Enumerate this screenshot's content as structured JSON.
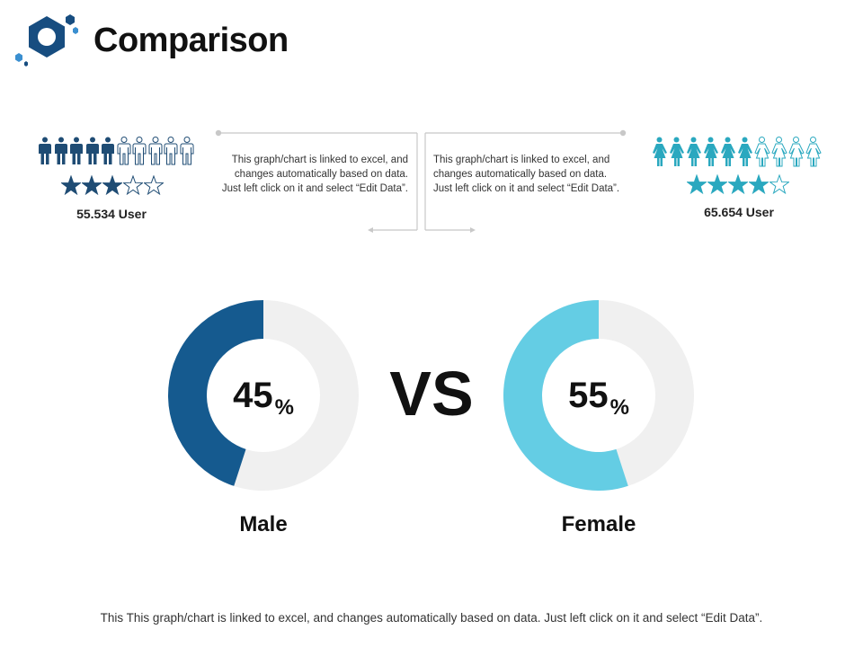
{
  "title": "Comparison",
  "colors": {
    "male": "#155a8f",
    "female": "#64cde4",
    "track": "#f0f0f0",
    "male_people": "#1f4c74",
    "female_people": "#2aa8bf"
  },
  "male": {
    "icon": "male-person-icon",
    "people_total": 10,
    "people_filled": 5,
    "stars_total": 5,
    "stars_filled": 3,
    "user_label": "55.534 User",
    "note": "This graph/chart is linked to excel, and changes automatically based on data. Just left click on it and select “Edit Data”."
  },
  "female": {
    "icon": "female-person-icon",
    "people_total": 10,
    "people_filled": 6,
    "stars_total": 5,
    "stars_filled": 4,
    "user_label": "65.654 User",
    "note": "This graph/chart is linked to excel, and changes automatically based on data. Just left click on it and select “Edit Data”."
  },
  "vs_label": "VS",
  "chart_data": {
    "type": "pie",
    "variant": "donut",
    "series": [
      {
        "name": "Male",
        "value": 45,
        "label": "45",
        "unit": "%"
      },
      {
        "name": "Female",
        "value": 55,
        "label": "55",
        "unit": "%"
      }
    ]
  },
  "footer": "This This graph/chart is linked to excel, and changes automatically based on data. Just left click on it and select “Edit Data”."
}
